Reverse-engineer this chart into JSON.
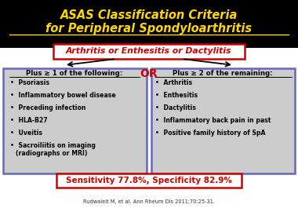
{
  "title_line1": "ASAS Classification Criteria",
  "title_line2": "for Peripheral Spondyloarthritis",
  "title_color": "#FFD700",
  "title_bg": "#000000",
  "subtitle": "Arthritis or Enthesitis or Dactylitis",
  "subtitle_color": "#CC0000",
  "subtitle_box_edge": "#CC0000",
  "subtitle_box_bg": "#FFFFFF",
  "or_text": "OR",
  "or_color": "#CC0000",
  "left_header": "Plus ≥ 1 of the following:",
  "left_items": [
    "Psoriasis",
    "Inflammatory bowel disease",
    "Preceding infection",
    "HLA-B27",
    "Uveitis",
    "Sacroiliitis on imaging\n(radiographs or MRI)"
  ],
  "right_header": "Plus ≥ 2 of the remaining:",
  "right_items": [
    "Arthritis",
    "Enthesitis",
    "Dactylitis",
    "Inflammatory back pain in past",
    "Positive family history of SpA"
  ],
  "box_bg": "#CCCCCC",
  "box_edge": "#6666BB",
  "sensitivity_text": "Sensitivity 77.8%, Specificity 82.9%",
  "sensitivity_color": "#CC0000",
  "sensitivity_box_edge": "#CC0000",
  "sensitivity_box_bg": "#FFFFFF",
  "footnote": "Rudwaleit M, et al. Ann Rheum Dis 2011;70:25-31.",
  "footnote_color": "#333333"
}
